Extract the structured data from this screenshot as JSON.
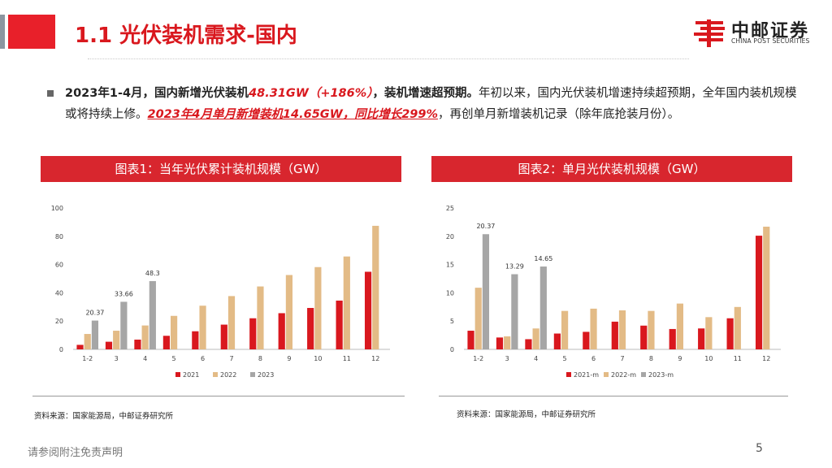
{
  "header": {
    "title": "1.1 光伏装机需求-国内",
    "logo_name": "中邮证券",
    "logo_sub": "CHINA POST SECURITIES"
  },
  "bullet": {
    "p1": "2023年1-4月，国内新增光伏装机",
    "p2": "48.31GW（+186%）",
    "p3": "，装机增速超预期。",
    "p4": "年初以来，国内光伏装机增速持续超预期，全年国内装机规模或将持续上修。",
    "p5": "2023年4月单月新增装机14.65GW，同比增长299%",
    "p6": "，再创单月新增装机记录（除年底抢装月份）。"
  },
  "chart1_title": "图表1：当年光伏累计装机规模（GW）",
  "chart2_title": "图表2：单月光伏装机规模（GW）",
  "source1": "资料来源：国家能源局，中邮证券研究所",
  "source2": "资料来源：国家能源局，中邮证券研究所",
  "footer": "请参阅附注免责声明",
  "page_number": "5",
  "colors": {
    "c2021": "#d9181e",
    "c2022": "#e3bb86",
    "c2023": "#a6a6a6",
    "accent": "#d8262e"
  },
  "chart_data": [
    {
      "type": "bar",
      "categories": [
        "1-2",
        "3",
        "4",
        "5",
        "6",
        "7",
        "8",
        "9",
        "10",
        "11",
        "12"
      ],
      "ylim": [
        0,
        100
      ],
      "yticks": [
        0,
        20,
        40,
        60,
        80,
        100
      ],
      "legend_position": "bottom",
      "series": [
        {
          "name": "2021",
          "values": [
            3.2,
            5.4,
            6.9,
            9.6,
            12.8,
            17.5,
            22.0,
            25.6,
            29.3,
            34.5,
            54.9
          ],
          "labels": [
            null,
            null,
            null,
            null,
            null,
            null,
            null,
            null,
            null,
            null,
            null
          ]
        },
        {
          "name": "2022",
          "values": [
            10.9,
            13.2,
            16.9,
            23.7,
            30.9,
            37.7,
            44.5,
            52.6,
            58.2,
            65.7,
            87.4
          ],
          "labels": [
            null,
            null,
            null,
            null,
            null,
            null,
            null,
            null,
            null,
            null,
            null
          ]
        },
        {
          "name": "2023",
          "values": [
            20.37,
            33.66,
            48.3,
            null,
            null,
            null,
            null,
            null,
            null,
            null,
            null
          ],
          "labels": [
            "20.37",
            "33.66",
            "48.3",
            null,
            null,
            null,
            null,
            null,
            null,
            null,
            null
          ]
        }
      ]
    },
    {
      "type": "bar",
      "categories": [
        "1-2",
        "3",
        "4",
        "5",
        "6",
        "7",
        "8",
        "9",
        "10",
        "11",
        "12"
      ],
      "ylim": [
        0,
        25
      ],
      "yticks": [
        0,
        5,
        10,
        15,
        20,
        25
      ],
      "legend_position": "bottom",
      "series": [
        {
          "name": "2021-m",
          "values": [
            3.3,
            2.1,
            1.8,
            2.8,
            3.1,
            4.9,
            4.2,
            3.6,
            3.7,
            5.5,
            20.1
          ],
          "labels": [
            null,
            null,
            null,
            null,
            null,
            null,
            null,
            null,
            null,
            null,
            null
          ]
        },
        {
          "name": "2022-m",
          "values": [
            10.9,
            2.3,
            3.7,
            6.8,
            7.2,
            6.9,
            6.8,
            8.1,
            5.7,
            7.5,
            21.7
          ],
          "labels": [
            null,
            null,
            null,
            null,
            null,
            null,
            null,
            null,
            null,
            null,
            null
          ]
        },
        {
          "name": "2023-m",
          "values": [
            20.37,
            13.29,
            14.65,
            null,
            null,
            null,
            null,
            null,
            null,
            null,
            null
          ],
          "labels": [
            "20.37",
            "13.29",
            "14.65",
            null,
            null,
            null,
            null,
            null,
            null,
            null,
            null
          ]
        }
      ]
    }
  ]
}
